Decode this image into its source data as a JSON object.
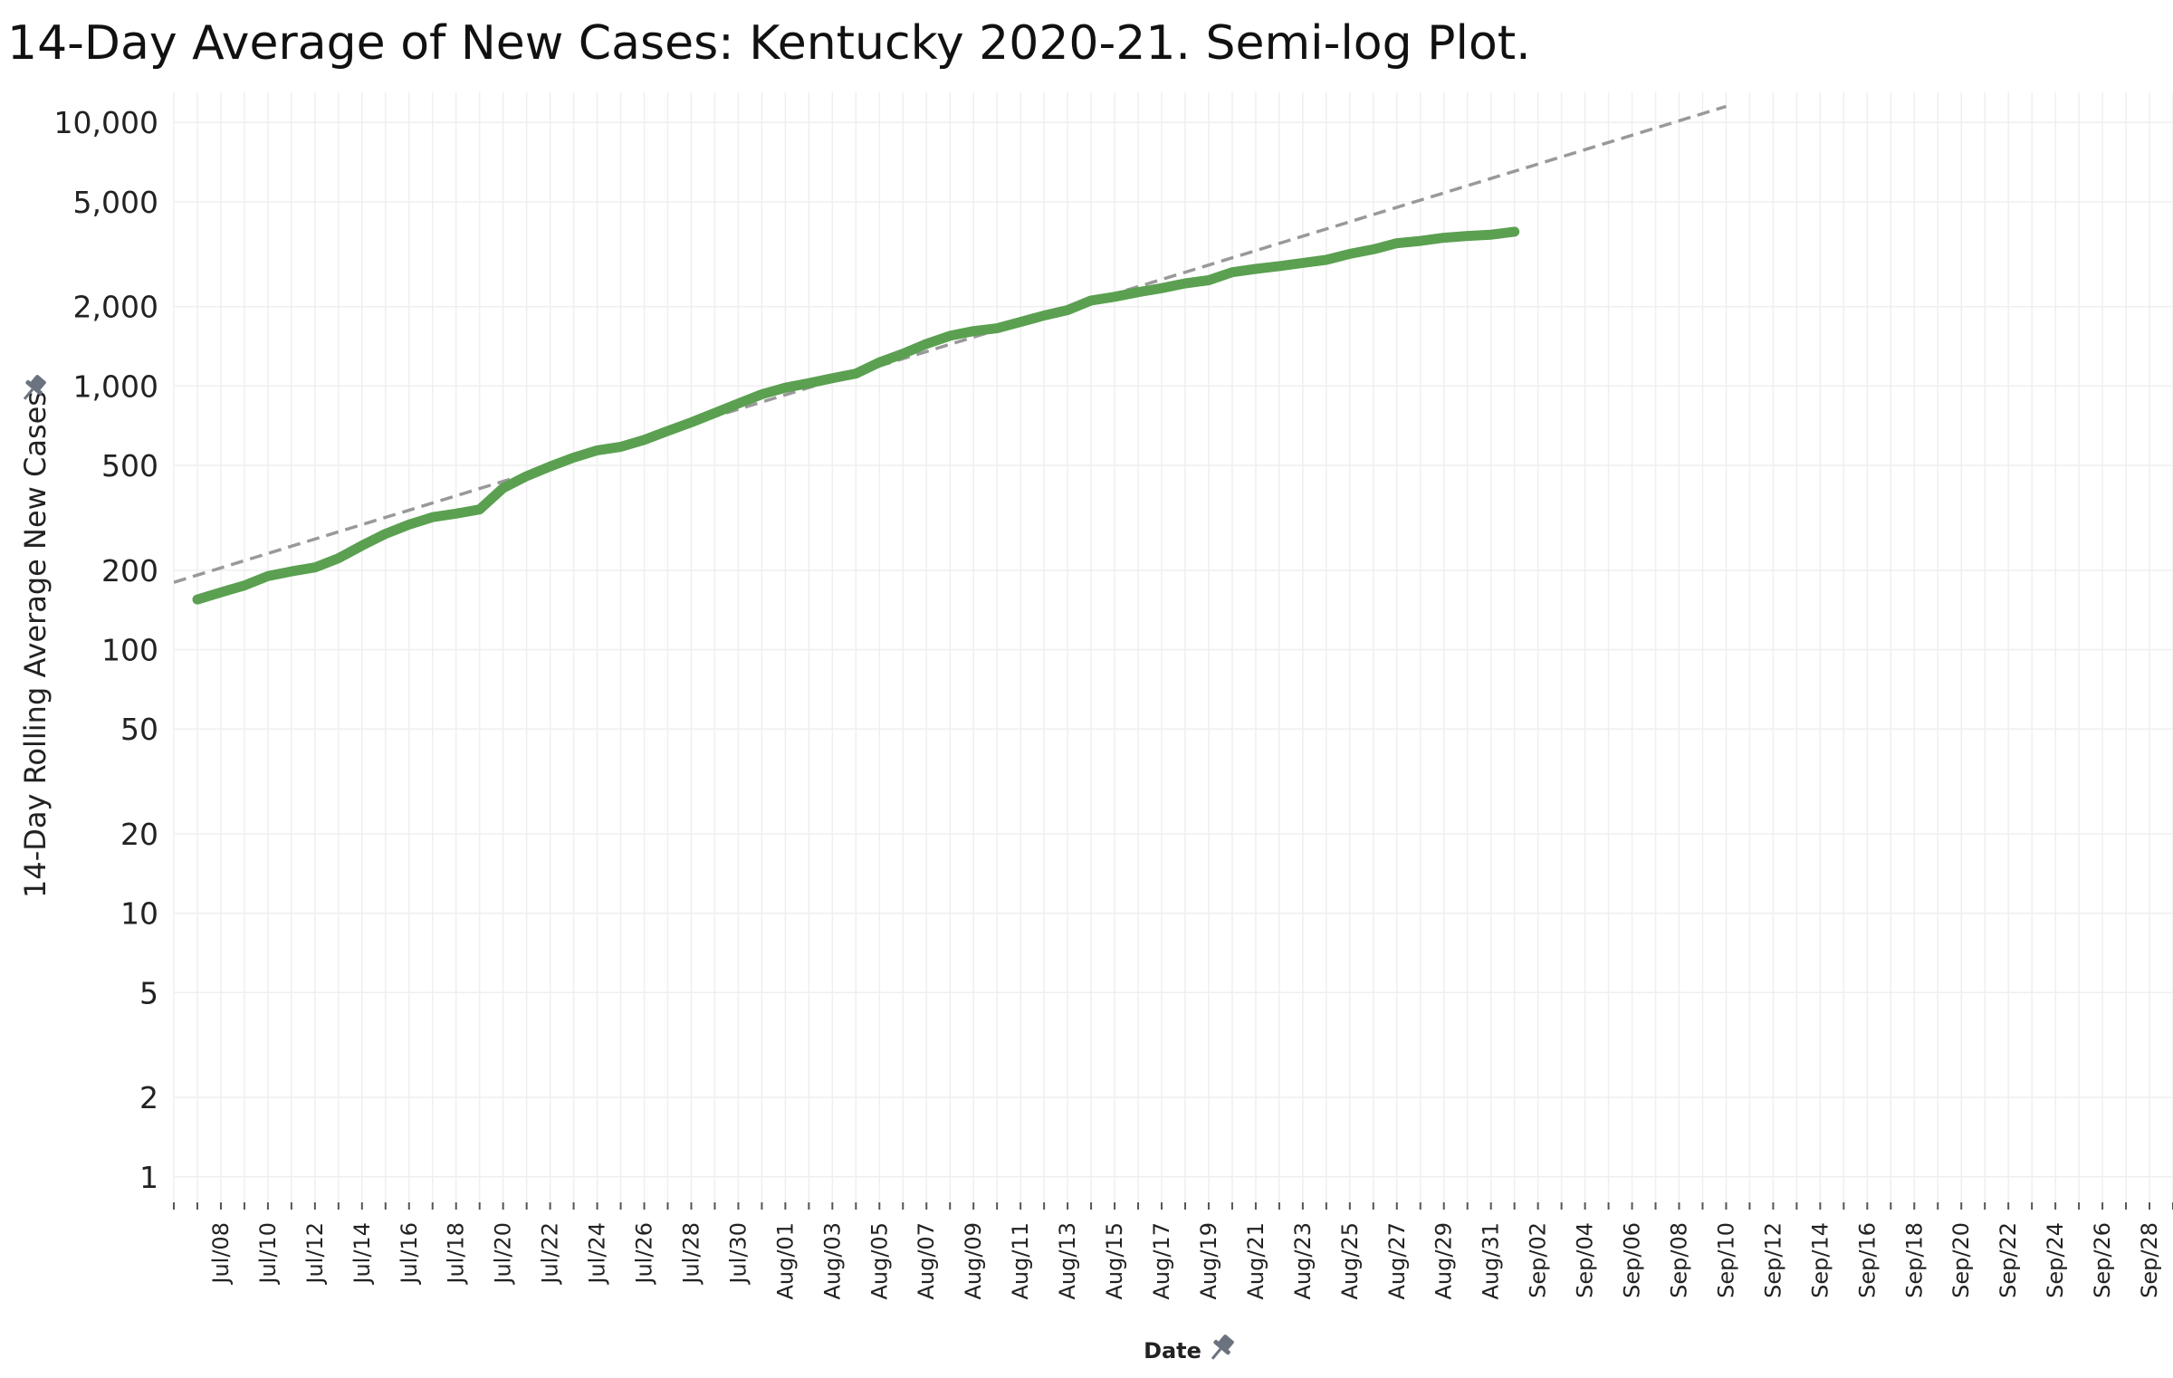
{
  "chart_data": {
    "type": "line",
    "title": "14-Day Average of New Cases:  Kentucky 2020-21.  Semi-log Plot.",
    "xlabel": "Date",
    "ylabel": "14-Day Rolling Average New Cases",
    "y_scale": "log",
    "ylim": [
      0.8,
      13000
    ],
    "xlim": [
      "Jul/06",
      "Sep/29"
    ],
    "y_ticks": [
      1,
      2,
      5,
      10,
      20,
      50,
      100,
      200,
      500,
      1000,
      2000,
      5000,
      10000
    ],
    "y_tick_labels": [
      "1",
      "2",
      "5",
      "10",
      "20",
      "50",
      "100",
      "200",
      "500",
      "1,000",
      "2,000",
      "5,000",
      "10,000"
    ],
    "x_tick_labels": [
      "Jul/08",
      "Jul/10",
      "Jul/12",
      "Jul/14",
      "Jul/16",
      "Jul/18",
      "Jul/20",
      "Jul/22",
      "Jul/24",
      "Jul/26",
      "Jul/28",
      "Jul/30",
      "Aug/01",
      "Aug/03",
      "Aug/05",
      "Aug/07",
      "Aug/09",
      "Aug/11",
      "Aug/13",
      "Aug/15",
      "Aug/17",
      "Aug/19",
      "Aug/21",
      "Aug/23",
      "Aug/25",
      "Aug/27",
      "Aug/29",
      "Aug/31",
      "Sep/02",
      "Sep/04",
      "Sep/06",
      "Sep/08",
      "Sep/10",
      "Sep/12",
      "Sep/14",
      "Sep/16",
      "Sep/18",
      "Sep/20",
      "Sep/22",
      "Sep/24",
      "Sep/26",
      "Sep/28"
    ],
    "x_dates": [
      "Jul/07",
      "Jul/08",
      "Jul/09",
      "Jul/10",
      "Jul/11",
      "Jul/12",
      "Jul/13",
      "Jul/14",
      "Jul/15",
      "Jul/16",
      "Jul/17",
      "Jul/18",
      "Jul/19",
      "Jul/20",
      "Jul/21",
      "Jul/22",
      "Jul/23",
      "Jul/24",
      "Jul/25",
      "Jul/26",
      "Jul/27",
      "Jul/28",
      "Jul/29",
      "Jul/30",
      "Jul/31",
      "Aug/01",
      "Aug/02",
      "Aug/03",
      "Aug/04",
      "Aug/05",
      "Aug/06",
      "Aug/07",
      "Aug/08",
      "Aug/09",
      "Aug/10",
      "Aug/11",
      "Aug/12",
      "Aug/13",
      "Aug/14",
      "Aug/15",
      "Aug/16",
      "Aug/17",
      "Aug/18",
      "Aug/19",
      "Aug/20",
      "Aug/21",
      "Aug/22",
      "Aug/23",
      "Aug/24",
      "Aug/25",
      "Aug/26",
      "Aug/27",
      "Aug/28",
      "Aug/29",
      "Aug/30",
      "Aug/31",
      "Sep/01"
    ],
    "series": [
      {
        "color": "#5aa050",
        "style": "solid",
        "values": [
          155,
          165,
          175,
          190,
          198,
          205,
          222,
          248,
          275,
          298,
          318,
          328,
          340,
          410,
          455,
          495,
          535,
          570,
          588,
          625,
          675,
          728,
          790,
          858,
          930,
          985,
          1025,
          1070,
          1115,
          1230,
          1325,
          1445,
          1550,
          1615,
          1655,
          1750,
          1850,
          1940,
          2110,
          2180,
          2270,
          2350,
          2450,
          2520,
          2700,
          2780,
          2850,
          2930,
          3010,
          3170,
          3300,
          3480,
          3550,
          3650,
          3710,
          3750,
          3850
        ]
      },
      {
        "color": "#999999",
        "style": "dashed",
        "x": [
          "Jul/06",
          "Sep/10"
        ],
        "values": [
          180,
          11500
        ]
      }
    ],
    "grid": true,
    "legend": "none"
  }
}
